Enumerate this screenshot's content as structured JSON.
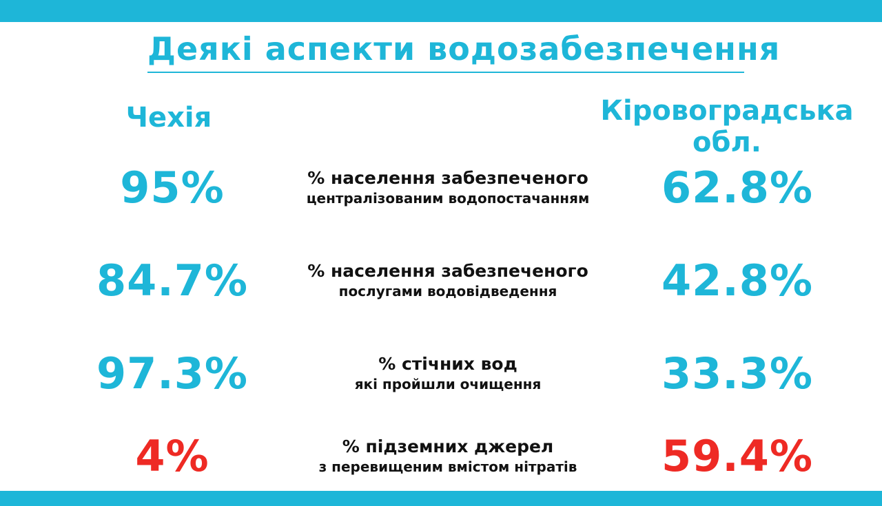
{
  "title": "Деякі аспекти водозабезпечення",
  "columns": {
    "left": "Чехія",
    "right_line1": "Кіровоградська",
    "right_line2": "обл."
  },
  "colors": {
    "accent": "#1eb6d8",
    "highlight": "#ee2a24",
    "text": "#111111"
  },
  "rows": [
    {
      "left_value": "95%",
      "label_line1": "% населення забезпеченого",
      "label_line2": "централізованим водопостачанням",
      "right_value": "62.8%",
      "color": "#1eb6d8"
    },
    {
      "left_value": "84.7%",
      "label_line1": "% населення забезпеченого",
      "label_line2": "послугами водовідведення",
      "right_value": "42.8%",
      "color": "#1eb6d8"
    },
    {
      "left_value": "97.3%",
      "label_line1": "% стічних вод",
      "label_line2": "які пройшли очищення",
      "right_value": "33.3%",
      "color": "#1eb6d8"
    },
    {
      "left_value": "4%",
      "label_line1": "% підземних джерел",
      "label_line2": "з перевищеним вмістом нітратів",
      "right_value": "59.4%",
      "color": "#ee2a24"
    }
  ]
}
